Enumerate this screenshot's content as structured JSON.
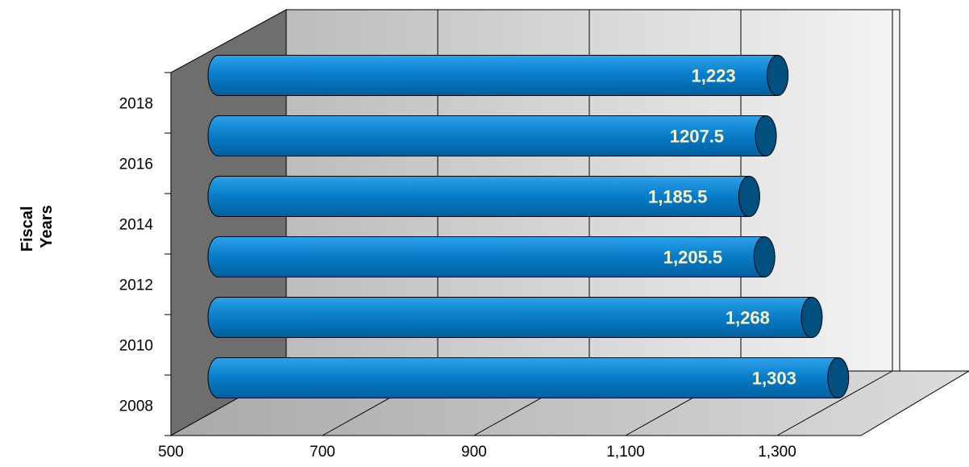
{
  "chart_data": {
    "type": "bar",
    "orientation": "horizontal",
    "three_d": true,
    "categories": [
      "2008",
      "2010",
      "2012",
      "2014",
      "2016",
      "2018"
    ],
    "series": [
      {
        "values": [
          1303,
          1268,
          1205.5,
          1185.5,
          1207.5,
          1223
        ],
        "labels": [
          "1,303",
          "1,268",
          "1,205.5",
          "1,185.5",
          "1207.5",
          "1,223"
        ],
        "color": "#0078c8"
      }
    ],
    "xlabel": "",
    "ylabel_lines": [
      "Fiscal",
      "Years"
    ],
    "xlim": [
      500,
      1300
    ],
    "x_ticks": [
      500,
      700,
      900,
      1100,
      1300
    ],
    "x_tick_labels": [
      "500",
      "700",
      "900",
      "1,100",
      "1,300"
    ],
    "y_tick_labels": [
      "2008",
      "2010",
      "2012",
      "2014",
      "2016",
      "2018"
    ],
    "grid": true,
    "legend": "none",
    "colors": {
      "bar": "#0078c8",
      "bar_cap": "#00507f",
      "label": "#fbf3c7",
      "back_wall": "#d2d2d2",
      "side_wall": "#6e6e6e",
      "floor": "#b9b9b9"
    }
  }
}
